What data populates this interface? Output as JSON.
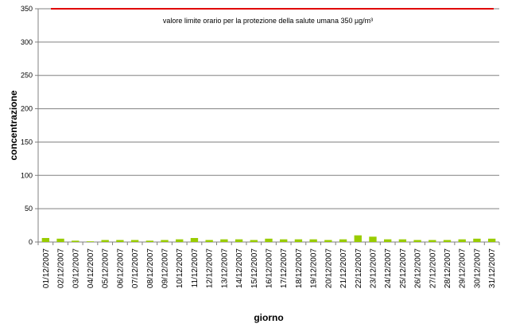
{
  "chart_data": {
    "type": "bar",
    "title": "",
    "xlabel": "giorno",
    "ylabel": "concentrazione",
    "ylim": [
      0,
      350
    ],
    "yticks": [
      0,
      50,
      100,
      150,
      200,
      250,
      300,
      350
    ],
    "grid": true,
    "legend": "none",
    "categories": [
      "01/12/2007",
      "02/12/2007",
      "03/12/2007",
      "04/12/2007",
      "05/12/2007",
      "06/12/2007",
      "07/12/2007",
      "08/12/2007",
      "09/12/2007",
      "10/12/2007",
      "11/12/2007",
      "12/12/2007",
      "13/12/2007",
      "14/12/2007",
      "15/12/2007",
      "16/12/2007",
      "17/12/2007",
      "18/12/2007",
      "19/12/2007",
      "20/12/2007",
      "21/12/2007",
      "22/12/2007",
      "23/12/2007",
      "24/12/2007",
      "25/12/2007",
      "26/12/2007",
      "27/12/2007",
      "28/12/2007",
      "29/12/2007",
      "30/12/2007",
      "31/12/2007"
    ],
    "values": [
      6,
      5,
      2,
      1,
      3,
      3,
      3,
      2,
      3,
      4,
      6,
      3,
      4,
      4,
      3,
      5,
      4,
      4,
      4,
      3,
      4,
      10,
      8,
      4,
      4,
      3,
      3,
      3,
      4,
      5,
      5
    ],
    "bar_color": "#99cc00",
    "reference_line": {
      "value": 350,
      "color": "#e00000",
      "label": "valore limite orario per la protezione della salute umana 350 µg/m³"
    }
  }
}
